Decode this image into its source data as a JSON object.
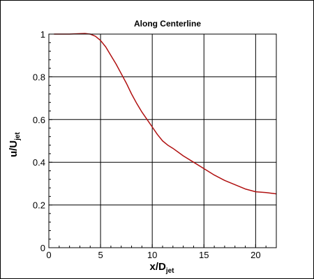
{
  "chart_data": {
    "type": "line",
    "title": "Along Centerline",
    "xlabel": {
      "main": "x/D",
      "sub": "jet"
    },
    "ylabel": {
      "main": "u/U",
      "sub": "jet"
    },
    "xlim": [
      0,
      22
    ],
    "ylim": [
      0,
      1
    ],
    "xticks": [
      0,
      5,
      10,
      15,
      20
    ],
    "yticks": [
      0,
      0.2,
      0.4,
      0.6,
      0.8,
      1
    ],
    "xtick_labels": [
      "0",
      "5",
      "10",
      "15",
      "20"
    ],
    "ytick_labels": [
      "0",
      "0.2",
      "0.4",
      "0.6",
      "0.8",
      "1"
    ],
    "grid": true,
    "series": [
      {
        "color": "#b01010",
        "x": [
          0.5,
          1,
          2,
          3,
          3.5,
          4,
          4.5,
          5,
          5.5,
          6,
          6.5,
          7,
          7.5,
          8,
          8.5,
          9,
          9.5,
          10,
          10.5,
          11,
          11.5,
          12,
          13,
          14,
          15,
          16,
          17,
          18,
          19,
          20,
          21,
          22
        ],
        "y": [
          1.0,
          1.0,
          1.0,
          1.002,
          1.003,
          1.0,
          0.99,
          0.97,
          0.94,
          0.9,
          0.86,
          0.815,
          0.77,
          0.72,
          0.675,
          0.635,
          0.6,
          0.565,
          0.53,
          0.5,
          0.48,
          0.465,
          0.43,
          0.4,
          0.37,
          0.34,
          0.315,
          0.295,
          0.275,
          0.262,
          0.258,
          0.252
        ]
      }
    ]
  }
}
